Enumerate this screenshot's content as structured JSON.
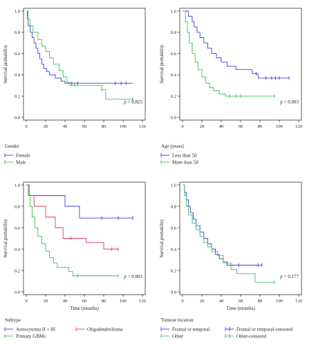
{
  "chart_data": [
    {
      "type": "line",
      "subtype": "kaplan-meier",
      "panel": "top-left",
      "title": "",
      "xlabel": "",
      "ylabel": "Survival probability",
      "xlim": [
        0,
        120
      ],
      "ylim": [
        0,
        1.0
      ],
      "xticks": [
        "0",
        "20",
        "40",
        "60",
        "80",
        "100",
        "120"
      ],
      "yticks": [
        "0.0",
        "0.2",
        "0.4",
        "0.6",
        "0.8",
        "1.0"
      ],
      "p_value": "0.825",
      "legend_title": "Gender",
      "legend_position": "bottom",
      "series": [
        {
          "name": "Female",
          "color": "#3b3bdc",
          "steps": [
            [
              0,
              1.0
            ],
            [
              1,
              0.93
            ],
            [
              2,
              0.86
            ],
            [
              4,
              0.8
            ],
            [
              6,
              0.75
            ],
            [
              8,
              0.7
            ],
            [
              10,
              0.65
            ],
            [
              12,
              0.6
            ],
            [
              14,
              0.55
            ],
            [
              16,
              0.5
            ],
            [
              18,
              0.46
            ],
            [
              21,
              0.43
            ],
            [
              24,
              0.4
            ],
            [
              30,
              0.37
            ],
            [
              36,
              0.34
            ],
            [
              40,
              0.32
            ],
            [
              44,
              0.32
            ],
            [
              110,
              0.32
            ]
          ],
          "censored": [
            [
              47,
              0.32
            ],
            [
              53,
              0.32
            ],
            [
              92,
              0.32
            ],
            [
              98,
              0.32
            ],
            [
              103,
              0.32
            ]
          ]
        },
        {
          "name": "Male",
          "color": "#3cbf5a",
          "steps": [
            [
              0,
              1.0
            ],
            [
              2,
              0.92
            ],
            [
              4,
              0.86
            ],
            [
              7,
              0.8
            ],
            [
              12,
              0.73
            ],
            [
              16,
              0.67
            ],
            [
              20,
              0.62
            ],
            [
              24,
              0.56
            ],
            [
              28,
              0.5
            ],
            [
              34,
              0.44
            ],
            [
              38,
              0.38
            ],
            [
              42,
              0.33
            ],
            [
              45,
              0.3
            ],
            [
              78,
              0.26
            ],
            [
              82,
              0.17
            ],
            [
              110,
              0.17
            ]
          ],
          "censored": [
            [
              50,
              0.3
            ],
            [
              78,
              0.26
            ],
            [
              110,
              0.17
            ]
          ]
        }
      ]
    },
    {
      "type": "line",
      "subtype": "kaplan-meier",
      "panel": "top-right",
      "title": "",
      "xlabel": "",
      "ylabel": "Survival probability",
      "xlim": [
        0,
        120
      ],
      "ylim": [
        0,
        1.0
      ],
      "xticks": [
        "0",
        "20",
        "40",
        "60",
        "80",
        "100",
        "120"
      ],
      "yticks": [
        "0.0",
        "0.2",
        "0.4",
        "0.6",
        "0.8",
        "1.0"
      ],
      "p_value": "0.003",
      "legend_title": "Age (years)",
      "legend_position": "bottom",
      "series": [
        {
          "name": "Less than 50",
          "color": "#3b3bdc",
          "steps": [
            [
              0,
              1.0
            ],
            [
              6,
              0.95
            ],
            [
              10,
              0.9
            ],
            [
              12,
              0.85
            ],
            [
              15,
              0.8
            ],
            [
              18,
              0.75
            ],
            [
              22,
              0.7
            ],
            [
              26,
              0.65
            ],
            [
              30,
              0.6
            ],
            [
              35,
              0.56
            ],
            [
              40,
              0.52
            ],
            [
              46,
              0.48
            ],
            [
              55,
              0.45
            ],
            [
              72,
              0.41
            ],
            [
              78,
              0.37
            ],
            [
              110,
              0.37
            ]
          ],
          "censored": [
            [
              76,
              0.41
            ],
            [
              86,
              0.37
            ],
            [
              92,
              0.37
            ],
            [
              96,
              0.37
            ],
            [
              100,
              0.37
            ],
            [
              110,
              0.37
            ]
          ]
        },
        {
          "name": "More than 50",
          "color": "#3cbf5a",
          "steps": [
            [
              0,
              1.0
            ],
            [
              3,
              0.9
            ],
            [
              5,
              0.8
            ],
            [
              7,
              0.7
            ],
            [
              10,
              0.6
            ],
            [
              13,
              0.52
            ],
            [
              16,
              0.45
            ],
            [
              20,
              0.38
            ],
            [
              24,
              0.32
            ],
            [
              28,
              0.28
            ],
            [
              32,
              0.25
            ],
            [
              38,
              0.22
            ],
            [
              44,
              0.2
            ],
            [
              95,
              0.2
            ]
          ],
          "censored": [
            [
              49,
              0.2
            ],
            [
              55,
              0.2
            ],
            [
              60,
              0.2
            ],
            [
              95,
              0.2
            ]
          ]
        }
      ]
    },
    {
      "type": "line",
      "subtype": "kaplan-meier",
      "panel": "bottom-left",
      "title": "",
      "xlabel": "Time (months)",
      "ylabel": "Survival probability",
      "xlim": [
        0,
        120
      ],
      "ylim": [
        0,
        1.0
      ],
      "xticks": [
        "0",
        "20",
        "40",
        "60",
        "80",
        "100",
        "120"
      ],
      "yticks": [
        "0.0",
        "0.2",
        "0.4",
        "0.6",
        "0.8",
        "1.0"
      ],
      "p_value": "0.001",
      "legend_title": "Subtype",
      "legend_position": "bottom",
      "series": [
        {
          "name": "Astrocytoma II + III",
          "color": "#3b3bdc",
          "steps": [
            [
              0,
              1.0
            ],
            [
              3,
              0.9
            ],
            [
              40,
              0.8
            ],
            [
              55,
              0.69
            ],
            [
              110,
              0.69
            ]
          ],
          "censored": [
            [
              78,
              0.69
            ],
            [
              95,
              0.69
            ],
            [
              110,
              0.69
            ]
          ]
        },
        {
          "name": "Primary GBMs",
          "color": "#3cbf5a",
          "steps": [
            [
              0,
              1.0
            ],
            [
              2,
              0.9
            ],
            [
              4,
              0.8
            ],
            [
              6,
              0.7
            ],
            [
              9,
              0.6
            ],
            [
              12,
              0.52
            ],
            [
              16,
              0.45
            ],
            [
              20,
              0.38
            ],
            [
              24,
              0.32
            ],
            [
              28,
              0.27
            ],
            [
              32,
              0.23
            ],
            [
              44,
              0.19
            ],
            [
              48,
              0.15
            ],
            [
              95,
              0.15
            ]
          ],
          "censored": [
            [
              53,
              0.15
            ],
            [
              95,
              0.15
            ]
          ]
        },
        {
          "name": "Oligodendrolioma",
          "color": "#dc3b5a",
          "steps": [
            [
              0,
              1.0
            ],
            [
              3,
              0.9
            ],
            [
              8,
              0.8
            ],
            [
              20,
              0.7
            ],
            [
              30,
              0.6
            ],
            [
              38,
              0.5
            ],
            [
              62,
              0.46
            ],
            [
              80,
              0.4
            ],
            [
              95,
              0.4
            ]
          ],
          "censored": [
            [
              46,
              0.5
            ],
            [
              88,
              0.4
            ],
            [
              95,
              0.4
            ]
          ]
        }
      ]
    },
    {
      "type": "line",
      "subtype": "kaplan-meier",
      "panel": "bottom-right",
      "title": "",
      "xlabel": "Time (months)",
      "ylabel": "Survival probability",
      "xlim": [
        0,
        120
      ],
      "ylim": [
        0,
        1.0
      ],
      "xticks": [
        "0",
        "20",
        "40",
        "60",
        "80",
        "100",
        "120"
      ],
      "yticks": [
        "0.0",
        "0.2",
        "0.4",
        "0.6",
        "0.8",
        "1.0"
      ],
      "p_value": "0.177",
      "legend_title": "Tumour location",
      "legend_position": "bottom",
      "series": [
        {
          "name": "Frontal or temporal",
          "color": "#3b3bdc",
          "steps": [
            [
              0,
              1.0
            ],
            [
              2,
              0.93
            ],
            [
              4,
              0.86
            ],
            [
              6,
              0.8
            ],
            [
              8,
              0.74
            ],
            [
              11,
              0.68
            ],
            [
              14,
              0.62
            ],
            [
              18,
              0.56
            ],
            [
              22,
              0.5
            ],
            [
              26,
              0.45
            ],
            [
              30,
              0.4
            ],
            [
              34,
              0.35
            ],
            [
              38,
              0.31
            ],
            [
              42,
              0.28
            ],
            [
              46,
              0.25
            ],
            [
              82,
              0.25
            ]
          ],
          "censored": [
            [
              50,
              0.25
            ],
            [
              58,
              0.25
            ],
            [
              78,
              0.25
            ],
            [
              82,
              0.25
            ]
          ]
        },
        {
          "name": "Other",
          "color": "#3cbf5a",
          "steps": [
            [
              0,
              1.0
            ],
            [
              2,
              0.9
            ],
            [
              4,
              0.8
            ],
            [
              6,
              0.72
            ],
            [
              10,
              0.64
            ],
            [
              14,
              0.58
            ],
            [
              18,
              0.52
            ],
            [
              22,
              0.46
            ],
            [
              26,
              0.42
            ],
            [
              30,
              0.38
            ],
            [
              36,
              0.34
            ],
            [
              42,
              0.27
            ],
            [
              50,
              0.21
            ],
            [
              56,
              0.17
            ],
            [
              75,
              0.09
            ],
            [
              95,
              0.09
            ]
          ],
          "censored": [
            [
              95,
              0.09
            ]
          ]
        }
      ],
      "legend_entries": [
        {
          "label": "Frontal or temporal",
          "color": "#3b3bdc",
          "kind": "line"
        },
        {
          "label": "Other",
          "color": "#3cbf5a",
          "kind": "line"
        },
        {
          "label": "Frontal or temporal-censored",
          "color": "#3b3bdc",
          "kind": "censor"
        },
        {
          "label": "Other-censored",
          "color": "#3cbf5a",
          "kind": "censor"
        }
      ]
    }
  ]
}
